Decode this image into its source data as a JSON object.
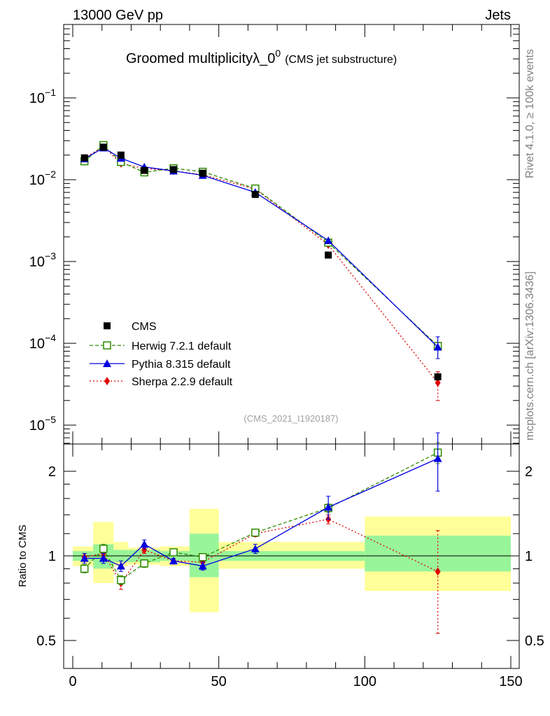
{
  "header": {
    "left": "13000 GeV pp",
    "right": "Jets"
  },
  "side": {
    "top": "Rivet 4.1.0, ≥ 100k events",
    "bottom": "mcplots.cern.ch [arXiv:1306.3436]"
  },
  "colors": {
    "cms": "#000000",
    "herwig": "#2e8b00",
    "pythia": "#0000e0",
    "sherpa": "#e00000",
    "band_inner": "#99f599",
    "band_outer": "#ffff99"
  },
  "chart_data": [
    {
      "type": "scatter",
      "title": "Groomed multiplicityλ_0",
      "title_sup": "0",
      "subtitle": "(CMS jet substructure)",
      "watermark": "(CMS_2021_I1920187)",
      "yscale": "log",
      "ylim": [
        7e-06,
        0.5
      ],
      "xlim": [
        -5,
        150
      ],
      "yticks": [
        {
          "v": 1e-05,
          "b": "10",
          "e": "−5"
        },
        {
          "v": 0.0001,
          "b": "10",
          "e": "−4"
        },
        {
          "v": 0.001,
          "b": "10",
          "e": "−3"
        },
        {
          "v": 0.01,
          "b": "10",
          "e": "−2"
        },
        {
          "v": 0.1,
          "b": "10",
          "e": "−1"
        }
      ],
      "x": [
        4,
        10.5,
        16.5,
        24.5,
        34.5,
        44.5,
        62.5,
        87.5,
        125
      ],
      "bins": [
        [
          0,
          7
        ],
        [
          7,
          14
        ],
        [
          14,
          19
        ],
        [
          19,
          30
        ],
        [
          30,
          40
        ],
        [
          40,
          50
        ],
        [
          50,
          75
        ],
        [
          75,
          100
        ],
        [
          100,
          150
        ]
      ],
      "legend": [
        "CMS",
        "Herwig 7.2.1 default",
        "Pythia 8.315 default",
        "Sherpa 2.2.9 default"
      ],
      "series": [
        {
          "name": "CMS",
          "values": [
            0.0185,
            0.025,
            0.02,
            0.013,
            0.0133,
            0.012,
            0.0066,
            0.0012,
            3.9e-05
          ]
        },
        {
          "name": "Herwig 7.2.1 default",
          "values": [
            0.0168,
            0.0265,
            0.0165,
            0.0123,
            0.0138,
            0.0125,
            0.0078,
            0.0017,
            9.3e-05
          ]
        },
        {
          "name": "Pythia 8.315 default",
          "values": [
            0.018,
            0.0245,
            0.0183,
            0.0143,
            0.0128,
            0.0113,
            0.007,
            0.0018,
            9e-05
          ],
          "err_hi": [
            0,
            0,
            0,
            0,
            0,
            0,
            0,
            0,
            3e-05
          ],
          "err_lo": [
            0,
            0,
            0,
            0,
            0,
            0,
            0,
            0,
            2.5e-05
          ]
        },
        {
          "name": "Sherpa 2.2.9 default",
          "values": [
            0.0183,
            0.0255,
            0.0158,
            0.0137,
            0.0128,
            0.0115,
            0.0077,
            0.0016,
            3.3e-05
          ],
          "err_hi": [
            0,
            0,
            0,
            0,
            0,
            0,
            0,
            0,
            1.2e-05
          ],
          "err_lo": [
            0,
            0,
            0,
            0,
            0,
            0,
            0,
            0,
            1.3e-05
          ]
        }
      ]
    },
    {
      "type": "scatter",
      "ylabel": "Ratio to CMS",
      "yscale": "log",
      "ylim": [
        0.43,
        2.4
      ],
      "xlim": [
        -5,
        150
      ],
      "yticks": [
        0.5,
        1,
        2
      ],
      "xticks": [
        0,
        50,
        100,
        150
      ],
      "band_inner": [
        [
          0.96,
          1.04
        ],
        [
          0.9,
          1.1
        ],
        [
          0.95,
          1.05
        ],
        [
          0.95,
          1.05
        ],
        [
          0.96,
          1.04
        ],
        [
          0.84,
          1.2
        ],
        [
          0.96,
          1.04
        ],
        [
          0.96,
          1.04
        ],
        [
          0.88,
          1.18
        ]
      ],
      "band_outer": [
        [
          0.92,
          1.08
        ],
        [
          0.8,
          1.32
        ],
        [
          0.92,
          1.12
        ],
        [
          0.93,
          1.07
        ],
        [
          0.92,
          1.08
        ],
        [
          0.63,
          1.47
        ],
        [
          0.9,
          1.12
        ],
        [
          0.9,
          1.12
        ],
        [
          0.75,
          1.38
        ]
      ],
      "series": [
        {
          "name": "Herwig 7.2.1 default",
          "values": [
            0.9,
            1.06,
            0.82,
            0.94,
            1.03,
            0.99,
            1.21,
            1.48,
            2.33
          ],
          "err": [
            0.03,
            0.04,
            0.03,
            0.03,
            0.02,
            0.02,
            0.03,
            0.05,
            0.2
          ]
        },
        {
          "name": "Pythia 8.315 default",
          "values": [
            0.98,
            0.98,
            0.92,
            1.1,
            0.96,
            0.92,
            1.06,
            1.49,
            2.22
          ],
          "err": [
            0.04,
            0.04,
            0.04,
            0.04,
            0.02,
            0.03,
            0.04,
            0.14,
            0.52
          ]
        },
        {
          "name": "Sherpa 2.2.9 default",
          "values": [
            0.99,
            1.02,
            0.8,
            1.05,
            0.96,
            0.95,
            1.2,
            1.35,
            0.88
          ],
          "err": [
            0.03,
            0.03,
            0.04,
            0.03,
            0.02,
            0.03,
            0.03,
            0.05,
            0.35
          ]
        }
      ]
    }
  ]
}
